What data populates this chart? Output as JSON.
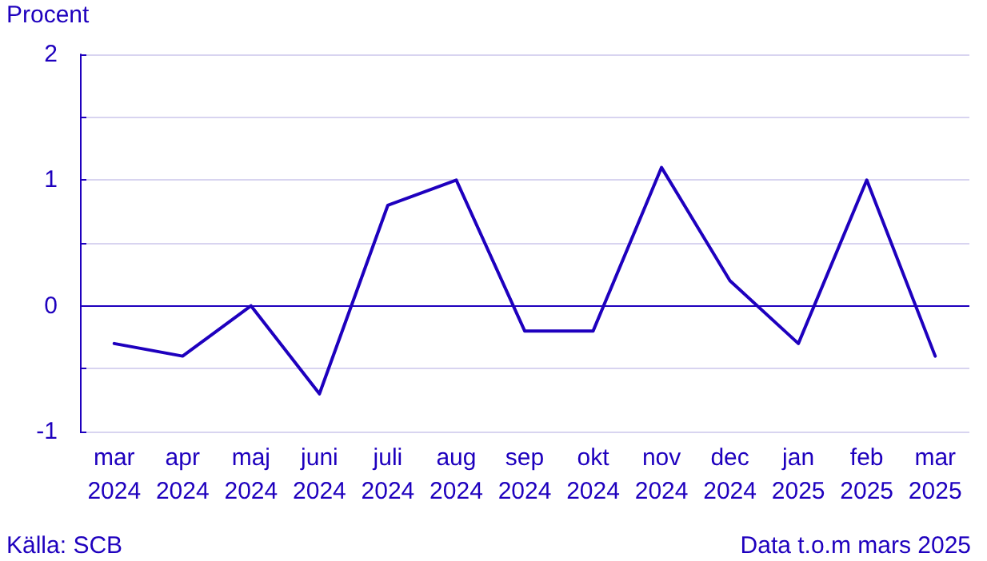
{
  "chart_data": {
    "type": "line",
    "ylabel": "Procent",
    "categories": [
      "mar\n2024",
      "apr\n2024",
      "maj\n2024",
      "juni\n2024",
      "juli\n2024",
      "aug\n2024",
      "sep\n2024",
      "okt\n2024",
      "nov\n2024",
      "dec\n2024",
      "jan\n2025",
      "feb\n2025",
      "mar\n2025"
    ],
    "series": [
      {
        "color": "#1e00be",
        "values": [
          -0.3,
          -0.4,
          0.0,
          -0.7,
          0.8,
          1.0,
          -0.2,
          -0.2,
          1.1,
          0.2,
          -0.3,
          1.0,
          -0.4
        ]
      }
    ],
    "ylim": [
      -1,
      2
    ],
    "yticks": [
      -1,
      {
        "value": -0.5,
        "label": null
      },
      0,
      {
        "value": 0.5,
        "label": null
      },
      1,
      {
        "value": 1.5,
        "label": null
      },
      2
    ],
    "grid": true,
    "marker": "none",
    "line_style": "solid",
    "ref_lines": [
      {
        "axis": "y",
        "value": 0,
        "color": "#1e00be"
      }
    ],
    "annotations": [
      "Källa: SCB",
      "Data t.o.m mars 2025"
    ]
  }
}
